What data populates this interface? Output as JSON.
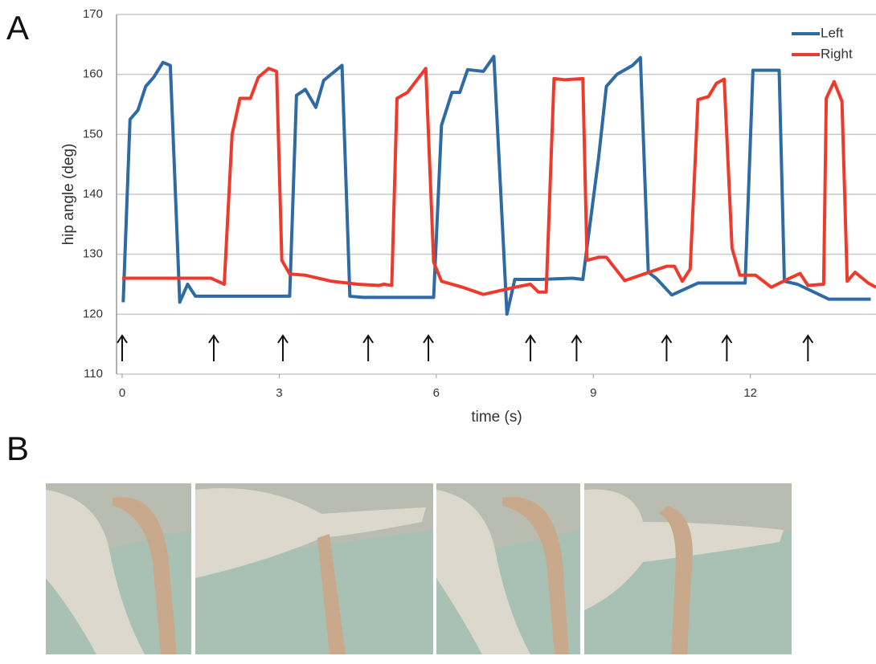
{
  "panel_labels": [
    "A",
    "B"
  ],
  "chart_data": {
    "type": "line",
    "xlabel": "time (s)",
    "ylabel": "hip angle (deg)",
    "xlim": [
      0,
      14.4
    ],
    "ylim": [
      110,
      170
    ],
    "xticks": [
      0,
      3,
      6,
      9,
      12
    ],
    "yticks": [
      110,
      120,
      130,
      140,
      150,
      160,
      170
    ],
    "grid": true,
    "legend": "top-right",
    "arrows": [
      0,
      1.75,
      3.07,
      4.7,
      5.85,
      7.8,
      8.68,
      10.4,
      11.55,
      13.1
    ],
    "series": [
      {
        "name": "Left",
        "color": "#2e6aa3",
        "x": [
          0.02,
          0.15,
          0.3,
          0.45,
          0.6,
          0.78,
          0.92,
          1.1,
          1.25,
          1.4,
          2,
          3,
          3.2,
          3.33,
          3.5,
          3.7,
          3.85,
          4.2,
          4.35,
          4.6,
          5.5,
          5.95,
          6.1,
          6.3,
          6.45,
          6.6,
          6.9,
          7.1,
          7.35,
          7.5,
          8.0,
          8.6,
          8.8,
          9.1,
          9.25,
          9.45,
          9.75,
          9.9,
          10.05,
          10.2,
          10.5,
          11,
          11.6,
          11.9,
          12.05,
          12.55,
          12.65,
          12.9,
          13.5,
          14.3
        ],
        "values": [
          122,
          152.5,
          154,
          158,
          159.5,
          162,
          161.5,
          122,
          125,
          123,
          123,
          123,
          123,
          156.5,
          157.5,
          154.5,
          159,
          161.5,
          123,
          122.8,
          122.8,
          122.8,
          151.5,
          157,
          157,
          160.8,
          160.5,
          163,
          120,
          125.8,
          125.8,
          126,
          125.8,
          146,
          158,
          160,
          161.5,
          162.8,
          127,
          126,
          123.2,
          125.2,
          125.2,
          125.2,
          160.7,
          160.7,
          125.5,
          125,
          122.5,
          122.5
        ]
      },
      {
        "name": "Right",
        "color": "#ee3a2c",
        "x": [
          0,
          1.5,
          1.7,
          1.95,
          2.1,
          2.25,
          2.45,
          2.6,
          2.8,
          2.95,
          3.05,
          3.2,
          3.5,
          4,
          4.5,
          4.9,
          5,
          5.15,
          5.25,
          5.45,
          5.8,
          5.95,
          6.1,
          6.5,
          6.9,
          7.5,
          7.8,
          7.95,
          8.1,
          8.25,
          8.45,
          8.8,
          8.88,
          9.1,
          9.25,
          9.6,
          10,
          10.4,
          10.55,
          10.7,
          10.85,
          11.0,
          11.2,
          11.35,
          11.5,
          11.65,
          11.8,
          12.1,
          12.4,
          12.7,
          12.95,
          13.1,
          13.4,
          13.45,
          13.6,
          13.75,
          13.85,
          14.0,
          14.25,
          14.4
        ],
        "values": [
          126,
          126,
          126,
          125,
          150,
          156,
          156,
          159.5,
          161,
          160.5,
          129,
          126.7,
          126.5,
          125.5,
          125,
          124.8,
          125,
          124.8,
          156,
          157,
          161,
          128.7,
          125.5,
          124.5,
          123.3,
          124.5,
          125,
          123.7,
          123.7,
          159.3,
          159.1,
          159.3,
          129,
          129.5,
          129.5,
          125.6,
          126.8,
          128,
          128,
          125.5,
          127.5,
          155.8,
          156.3,
          158.5,
          159.2,
          131,
          126.5,
          126.5,
          124.5,
          125.8,
          126.8,
          124.8,
          125,
          156,
          158.8,
          155.5,
          125.5,
          127,
          125.2,
          124.5
        ]
      }
    ]
  }
}
